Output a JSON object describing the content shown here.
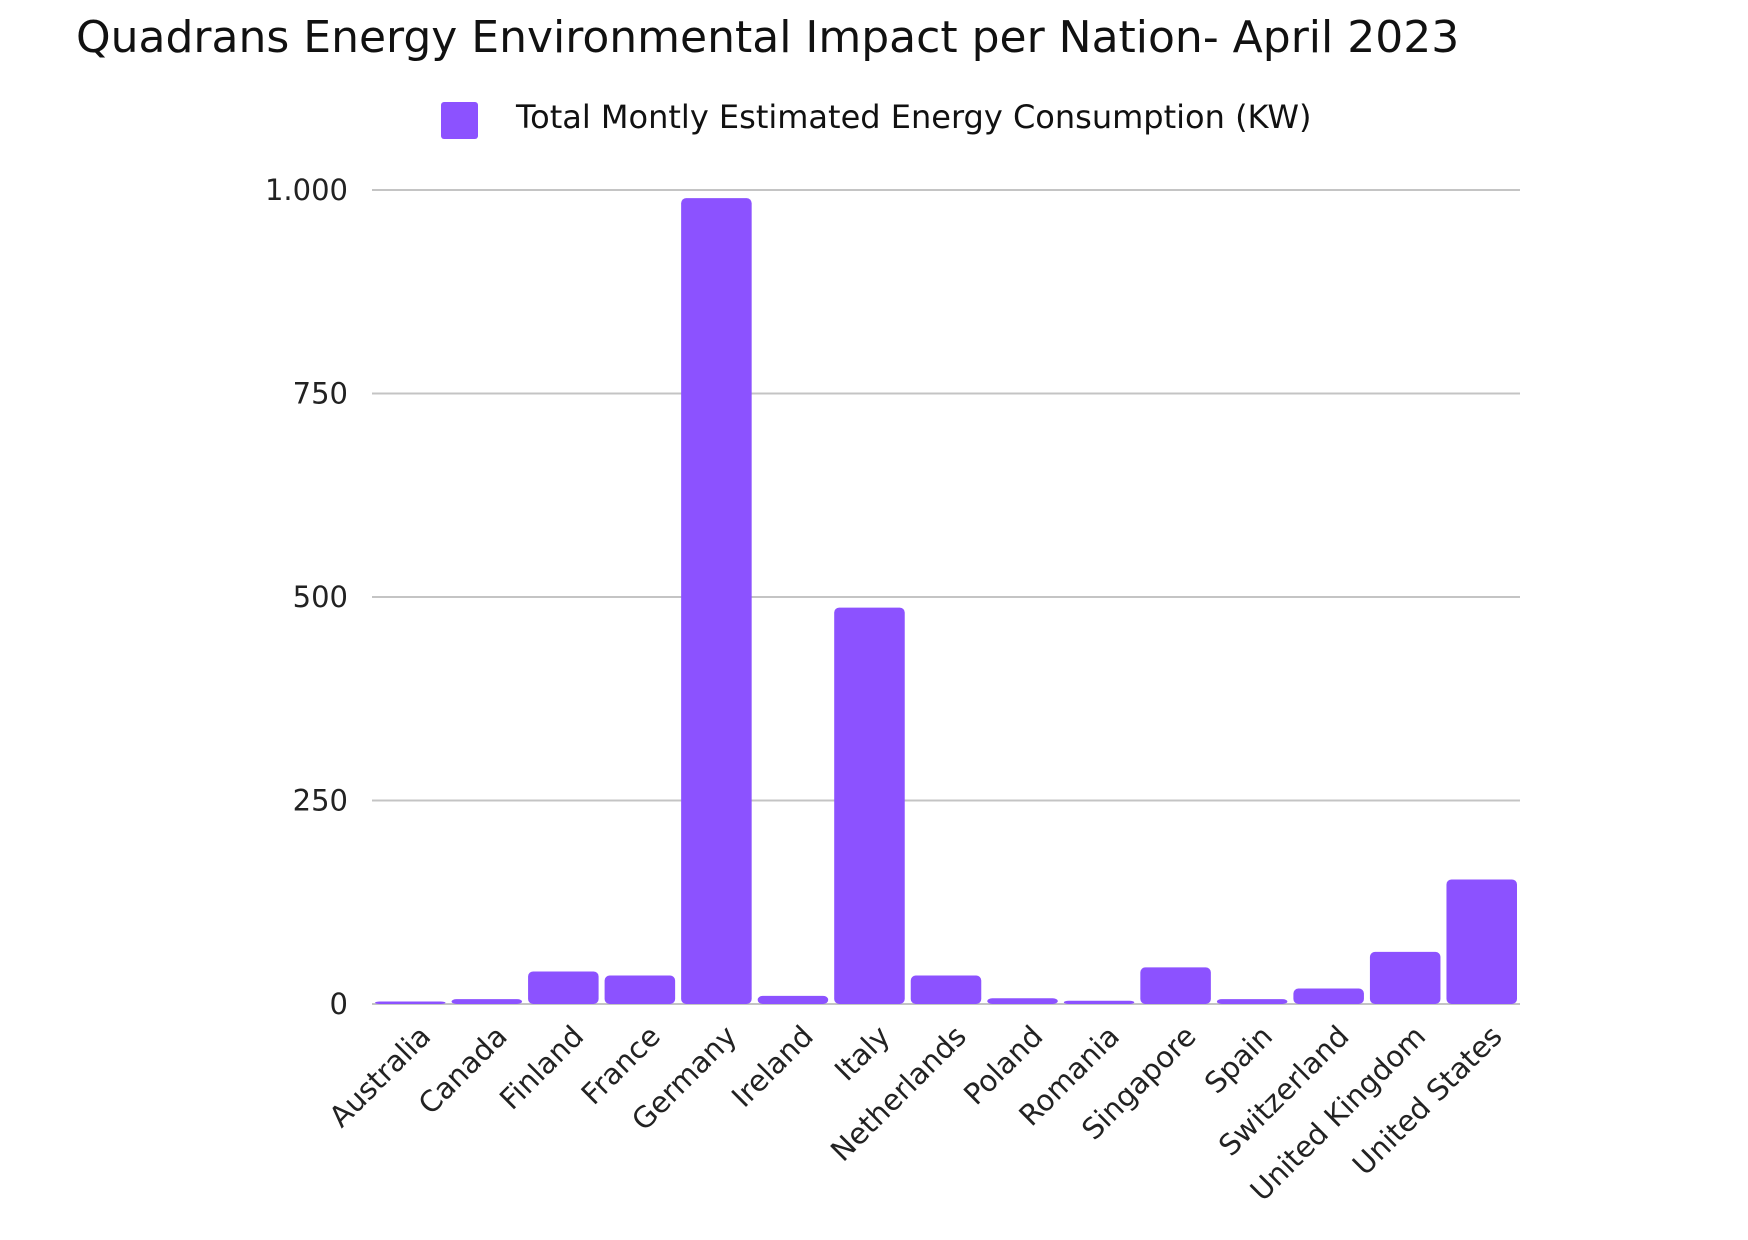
{
  "chart_data": {
    "type": "bar",
    "title": "Quadrans Energy Environmental Impact per Nation- April 2023",
    "categories": [
      "Australia",
      "Canada",
      "Finland",
      "France",
      "Germany",
      "Ireland",
      "Italy",
      "Netherlands",
      "Poland",
      "Romania",
      "Singapore",
      "Spain",
      "Switzerland",
      "United Kingdom",
      "United States"
    ],
    "series": [
      {
        "name": "Total Montly Estimated Energy Consumption (KW)",
        "color": "#8c52ff",
        "values": [
          3,
          6,
          40,
          35,
          990,
          10,
          487,
          35,
          7,
          4,
          45,
          6,
          19,
          64,
          153
        ]
      }
    ],
    "ylim": [
      0,
      1000
    ],
    "yticks": [
      0,
      250,
      500,
      750,
      1000
    ],
    "ytick_labels": [
      "0",
      "250",
      "500",
      "750",
      "1.000"
    ],
    "xlabel": "",
    "ylabel": "",
    "grid": true,
    "legend_position": "top-center"
  }
}
